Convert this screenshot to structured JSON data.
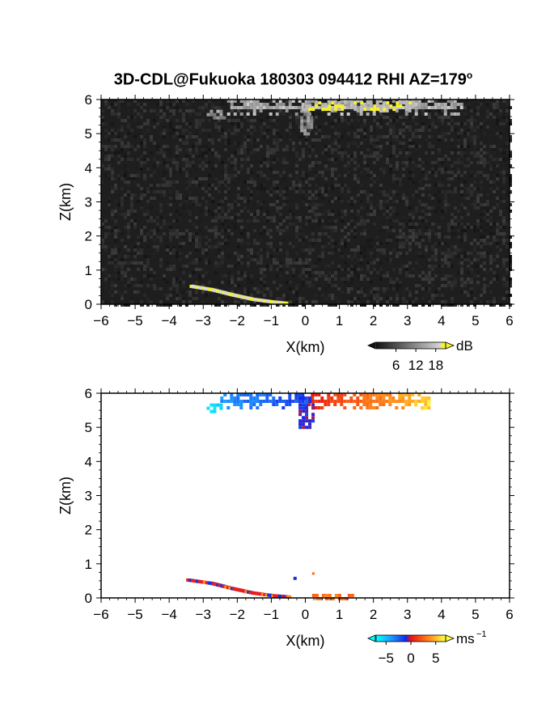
{
  "title_main": "3D-CDL@Fukuoka 180303 094412 RHI AZ=179",
  "title_sup": "o",
  "chart_data": [
    {
      "type": "heatmap",
      "panel": "backscatter intensity",
      "xlabel": "X(km)",
      "ylabel": "Z(km)",
      "xlim": [
        -6,
        6
      ],
      "ylim": [
        0,
        6
      ],
      "xticks": [
        "−6",
        "−5",
        "−4",
        "−3",
        "−2",
        "−1",
        "0",
        "1",
        "2",
        "3",
        "4",
        "5",
        "6"
      ],
      "yticks": [
        "0",
        "1",
        "2",
        "3",
        "4",
        "5",
        "6"
      ],
      "colorbar": {
        "unit": "dB",
        "ticks": [
          "6",
          "12",
          "18"
        ],
        "range": [
          0,
          21
        ]
      },
      "background": "#1e1e1e",
      "features": [
        {
          "kind": "cloud-layer",
          "x": [
            -2.3,
            4.6
          ],
          "z": [
            5.6,
            6.0
          ],
          "db": 14
        },
        {
          "kind": "cloud-patch",
          "x": [
            -2.9,
            -2.4
          ],
          "z": [
            5.5,
            5.7
          ],
          "db": 12
        },
        {
          "kind": "fall-streak",
          "x": [
            -0.15,
            0.15
          ],
          "z": [
            5.0,
            5.8
          ],
          "db": 11
        },
        {
          "kind": "strong-echo-yellow",
          "x": [
            -0.1,
            3.2
          ],
          "z": [
            5.65,
            5.95
          ],
          "db": 20
        },
        {
          "kind": "surface-echo",
          "points": [
            [
              -3.4,
              0.5
            ],
            [
              -2.8,
              0.4
            ],
            [
              -2.2,
              0.25
            ],
            [
              -1.6,
              0.12
            ],
            [
              -1.0,
              0.04
            ],
            [
              -0.6,
              0.0
            ]
          ]
        }
      ]
    },
    {
      "type": "heatmap",
      "panel": "radial velocity",
      "xlabel": "X(km)",
      "ylabel": "Z(km)",
      "xlim": [
        -6,
        6
      ],
      "ylim": [
        0,
        6
      ],
      "xticks": [
        "−6",
        "−5",
        "−4",
        "−3",
        "−2",
        "−1",
        "0",
        "1",
        "2",
        "3",
        "4",
        "5",
        "6"
      ],
      "yticks": [
        "0",
        "1",
        "2",
        "3",
        "4",
        "5",
        "6"
      ],
      "colorbar": {
        "unit": "ms",
        "unit_sup": "−1",
        "ticks": [
          "−5",
          "0",
          "5"
        ],
        "range": [
          -7,
          7
        ]
      },
      "features": [
        {
          "kind": "cloud-layer",
          "x": [
            -2.5,
            3.6
          ],
          "z": [
            5.6,
            6.0
          ],
          "velocity": "−1.5 left of 0, +3 right of 0"
        },
        {
          "kind": "patch",
          "x": [
            -2.9,
            -2.5
          ],
          "z": [
            5.5,
            5.7
          ],
          "velocity": -6
        },
        {
          "kind": "patch",
          "x": [
            3.2,
            3.6
          ],
          "z": [
            5.6,
            5.8
          ],
          "velocity": 6
        },
        {
          "kind": "fall-streak",
          "x": [
            -0.2,
            0.2
          ],
          "z": [
            5.0,
            5.9
          ],
          "velocity": -1
        },
        {
          "kind": "surface-echo",
          "points": [
            [
              -3.5,
              0.5
            ],
            [
              -2.8,
              0.4
            ],
            [
              -2.2,
              0.25
            ],
            [
              -1.6,
              0.12
            ],
            [
              -1.0,
              0.04
            ],
            [
              -0.5,
              0.0
            ]
          ],
          "velocity": "mixed"
        },
        {
          "kind": "near-surface",
          "x": [
            0.2,
            1.4
          ],
          "z": [
            0.0,
            0.12
          ],
          "velocity": 3
        }
      ]
    }
  ]
}
